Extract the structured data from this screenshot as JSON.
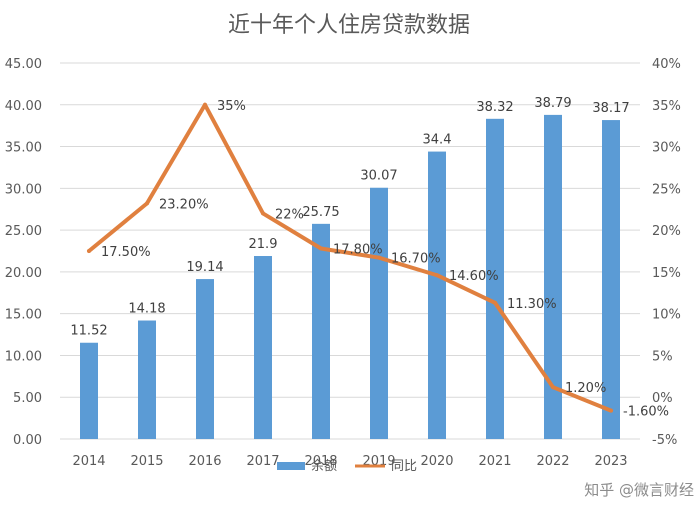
{
  "chart_data": {
    "type": "bar",
    "title": "近十年个人住房贷款数据",
    "categories": [
      "2014",
      "2015",
      "2016",
      "2017",
      "2018",
      "2019",
      "2020",
      "2021",
      "2022",
      "2023"
    ],
    "series": [
      {
        "name": "余额",
        "type": "bar",
        "axis": "left",
        "color": "#5b9bd5",
        "values": [
          11.52,
          14.18,
          19.14,
          21.9,
          25.75,
          30.07,
          34.4,
          38.32,
          38.79,
          38.17
        ],
        "labels": [
          "11.52",
          "14.18",
          "19.14",
          "21.9",
          "25.75",
          "30.07",
          "34.4",
          "38.32",
          "38.79",
          "38.17"
        ]
      },
      {
        "name": "同比",
        "type": "line",
        "axis": "right",
        "color": "#e0803f",
        "values": [
          17.5,
          23.2,
          35,
          22,
          17.8,
          16.7,
          14.6,
          11.3,
          1.2,
          -1.6
        ],
        "labels": [
          "17.50%",
          "23.20%",
          "35%",
          "22%",
          "17.80%",
          "16.70%",
          "14.60%",
          "11.30%",
          "1.20%",
          "-1.60%"
        ]
      }
    ],
    "y_left": {
      "range": [
        0,
        45
      ],
      "ticks": [
        "0.00",
        "5.00",
        "10.00",
        "15.00",
        "20.00",
        "25.00",
        "30.00",
        "35.00",
        "40.00",
        "45.00"
      ]
    },
    "y_right": {
      "range": [
        -5,
        40
      ],
      "ticks": [
        "-5%",
        "0%",
        "5%",
        "10%",
        "15%",
        "20%",
        "25%",
        "30%",
        "35%",
        "40%"
      ]
    },
    "grid": true,
    "legend": "bottom"
  },
  "watermark": "知乎 @微言财经"
}
